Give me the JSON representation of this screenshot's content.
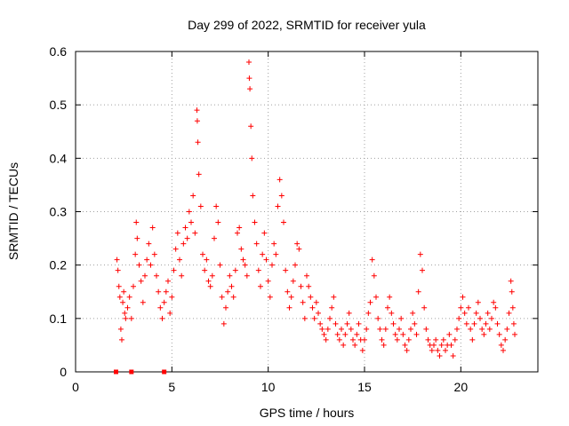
{
  "chart_data": {
    "type": "scatter",
    "title": "Day 299 of 2022, SRMTID for receiver yula",
    "xlabel": "GPS time / hours",
    "ylabel": "SRMTID / TECUs",
    "xlim": [
      0,
      24
    ],
    "ylim": [
      0,
      0.6
    ],
    "xticks": [
      0,
      5,
      10,
      15,
      20
    ],
    "yticks": [
      0,
      0.1,
      0.2,
      0.3,
      0.4,
      0.5,
      0.6
    ],
    "xtick_labels": [
      "0",
      "5",
      "10",
      "15",
      "20"
    ],
    "ytick_labels": [
      "0",
      "0.1",
      "0.2",
      "0.3",
      "0.4",
      "0.5",
      "0.6"
    ],
    "grid": true,
    "marker": "+",
    "series_color": "#ff0000",
    "zero_markers_x": [
      2.1,
      2.9,
      4.6
    ],
    "series": [
      {
        "name": "SRMTID",
        "points": [
          [
            2.15,
            0.21
          ],
          [
            2.2,
            0.19
          ],
          [
            2.25,
            0.16
          ],
          [
            2.3,
            0.14
          ],
          [
            2.35,
            0.08
          ],
          [
            2.4,
            0.06
          ],
          [
            2.45,
            0.13
          ],
          [
            2.5,
            0.15
          ],
          [
            2.55,
            0.11
          ],
          [
            2.6,
            0.1
          ],
          [
            2.7,
            0.12
          ],
          [
            2.8,
            0.14
          ],
          [
            2.9,
            0.1
          ],
          [
            3.0,
            0.16
          ],
          [
            3.1,
            0.22
          ],
          [
            3.15,
            0.28
          ],
          [
            3.2,
            0.25
          ],
          [
            3.3,
            0.2
          ],
          [
            3.4,
            0.17
          ],
          [
            3.5,
            0.13
          ],
          [
            3.6,
            0.18
          ],
          [
            3.7,
            0.21
          ],
          [
            3.8,
            0.24
          ],
          [
            3.9,
            0.2
          ],
          [
            4.0,
            0.27
          ],
          [
            4.1,
            0.22
          ],
          [
            4.2,
            0.18
          ],
          [
            4.3,
            0.15
          ],
          [
            4.4,
            0.12
          ],
          [
            4.5,
            0.1
          ],
          [
            4.6,
            0.13
          ],
          [
            4.7,
            0.15
          ],
          [
            4.8,
            0.17
          ],
          [
            4.9,
            0.11
          ],
          [
            5.0,
            0.14
          ],
          [
            5.1,
            0.19
          ],
          [
            5.2,
            0.23
          ],
          [
            5.3,
            0.26
          ],
          [
            5.4,
            0.21
          ],
          [
            5.5,
            0.18
          ],
          [
            5.6,
            0.24
          ],
          [
            5.7,
            0.27
          ],
          [
            5.8,
            0.25
          ],
          [
            5.9,
            0.3
          ],
          [
            6.0,
            0.28
          ],
          [
            6.1,
            0.33
          ],
          [
            6.2,
            0.26
          ],
          [
            6.3,
            0.49
          ],
          [
            6.32,
            0.47
          ],
          [
            6.35,
            0.43
          ],
          [
            6.4,
            0.37
          ],
          [
            6.5,
            0.31
          ],
          [
            6.6,
            0.22
          ],
          [
            6.7,
            0.19
          ],
          [
            6.8,
            0.21
          ],
          [
            6.9,
            0.17
          ],
          [
            7.0,
            0.16
          ],
          [
            7.1,
            0.18
          ],
          [
            7.2,
            0.25
          ],
          [
            7.3,
            0.31
          ],
          [
            7.4,
            0.28
          ],
          [
            7.5,
            0.2
          ],
          [
            7.6,
            0.14
          ],
          [
            7.7,
            0.09
          ],
          [
            7.8,
            0.12
          ],
          [
            7.9,
            0.15
          ],
          [
            8.0,
            0.18
          ],
          [
            8.1,
            0.16
          ],
          [
            8.2,
            0.14
          ],
          [
            8.3,
            0.19
          ],
          [
            8.4,
            0.26
          ],
          [
            8.5,
            0.27
          ],
          [
            8.6,
            0.23
          ],
          [
            8.7,
            0.21
          ],
          [
            8.8,
            0.2
          ],
          [
            8.9,
            0.18
          ],
          [
            9.0,
            0.58
          ],
          [
            9.02,
            0.55
          ],
          [
            9.05,
            0.53
          ],
          [
            9.1,
            0.46
          ],
          [
            9.15,
            0.4
          ],
          [
            9.2,
            0.33
          ],
          [
            9.3,
            0.28
          ],
          [
            9.4,
            0.24
          ],
          [
            9.5,
            0.19
          ],
          [
            9.6,
            0.16
          ],
          [
            9.7,
            0.22
          ],
          [
            9.8,
            0.26
          ],
          [
            9.9,
            0.21
          ],
          [
            10.0,
            0.17
          ],
          [
            10.1,
            0.14
          ],
          [
            10.2,
            0.2
          ],
          [
            10.3,
            0.24
          ],
          [
            10.4,
            0.22
          ],
          [
            10.5,
            0.31
          ],
          [
            10.6,
            0.36
          ],
          [
            10.7,
            0.33
          ],
          [
            10.8,
            0.28
          ],
          [
            10.9,
            0.19
          ],
          [
            11.0,
            0.15
          ],
          [
            11.1,
            0.12
          ],
          [
            11.2,
            0.14
          ],
          [
            11.3,
            0.17
          ],
          [
            11.4,
            0.2
          ],
          [
            11.5,
            0.24
          ],
          [
            11.6,
            0.23
          ],
          [
            11.7,
            0.16
          ],
          [
            11.8,
            0.13
          ],
          [
            11.9,
            0.1
          ],
          [
            12.0,
            0.18
          ],
          [
            12.1,
            0.16
          ],
          [
            12.2,
            0.14
          ],
          [
            12.3,
            0.12
          ],
          [
            12.4,
            0.1
          ],
          [
            12.5,
            0.13
          ],
          [
            12.6,
            0.11
          ],
          [
            12.7,
            0.09
          ],
          [
            12.8,
            0.08
          ],
          [
            12.9,
            0.07
          ],
          [
            13.0,
            0.06
          ],
          [
            13.1,
            0.08
          ],
          [
            13.2,
            0.1
          ],
          [
            13.3,
            0.12
          ],
          [
            13.4,
            0.14
          ],
          [
            13.5,
            0.09
          ],
          [
            13.6,
            0.07
          ],
          [
            13.7,
            0.06
          ],
          [
            13.8,
            0.08
          ],
          [
            13.9,
            0.05
          ],
          [
            14.0,
            0.07
          ],
          [
            14.1,
            0.09
          ],
          [
            14.2,
            0.11
          ],
          [
            14.3,
            0.08
          ],
          [
            14.4,
            0.06
          ],
          [
            14.5,
            0.05
          ],
          [
            14.6,
            0.07
          ],
          [
            14.7,
            0.09
          ],
          [
            14.8,
            0.06
          ],
          [
            14.9,
            0.04
          ],
          [
            15.0,
            0.06
          ],
          [
            15.1,
            0.08
          ],
          [
            15.2,
            0.11
          ],
          [
            15.3,
            0.13
          ],
          [
            15.4,
            0.21
          ],
          [
            15.5,
            0.18
          ],
          [
            15.6,
            0.14
          ],
          [
            15.7,
            0.1
          ],
          [
            15.8,
            0.08
          ],
          [
            15.9,
            0.06
          ],
          [
            16.0,
            0.05
          ],
          [
            16.1,
            0.08
          ],
          [
            16.2,
            0.12
          ],
          [
            16.3,
            0.14
          ],
          [
            16.4,
            0.11
          ],
          [
            16.5,
            0.09
          ],
          [
            16.6,
            0.07
          ],
          [
            16.7,
            0.06
          ],
          [
            16.8,
            0.08
          ],
          [
            16.9,
            0.1
          ],
          [
            17.0,
            0.07
          ],
          [
            17.1,
            0.05
          ],
          [
            17.2,
            0.04
          ],
          [
            17.3,
            0.06
          ],
          [
            17.4,
            0.08
          ],
          [
            17.5,
            0.11
          ],
          [
            17.6,
            0.09
          ],
          [
            17.7,
            0.07
          ],
          [
            17.8,
            0.15
          ],
          [
            17.9,
            0.22
          ],
          [
            18.0,
            0.19
          ],
          [
            18.1,
            0.12
          ],
          [
            18.2,
            0.08
          ],
          [
            18.3,
            0.06
          ],
          [
            18.4,
            0.05
          ],
          [
            18.5,
            0.04
          ],
          [
            18.6,
            0.05
          ],
          [
            18.7,
            0.06
          ],
          [
            18.8,
            0.04
          ],
          [
            18.9,
            0.03
          ],
          [
            19.0,
            0.05
          ],
          [
            19.1,
            0.06
          ],
          [
            19.2,
            0.04
          ],
          [
            19.3,
            0.05
          ],
          [
            19.4,
            0.07
          ],
          [
            19.5,
            0.05
          ],
          [
            19.6,
            0.03
          ],
          [
            19.7,
            0.06
          ],
          [
            19.8,
            0.08
          ],
          [
            19.9,
            0.1
          ],
          [
            20.0,
            0.12
          ],
          [
            20.1,
            0.14
          ],
          [
            20.2,
            0.11
          ],
          [
            20.3,
            0.09
          ],
          [
            20.4,
            0.12
          ],
          [
            20.5,
            0.08
          ],
          [
            20.6,
            0.06
          ],
          [
            20.7,
            0.09
          ],
          [
            20.8,
            0.11
          ],
          [
            20.9,
            0.13
          ],
          [
            21.0,
            0.1
          ],
          [
            21.1,
            0.08
          ],
          [
            21.2,
            0.07
          ],
          [
            21.3,
            0.09
          ],
          [
            21.4,
            0.11
          ],
          [
            21.5,
            0.08
          ],
          [
            21.6,
            0.1
          ],
          [
            21.7,
            0.13
          ],
          [
            21.8,
            0.12
          ],
          [
            21.9,
            0.09
          ],
          [
            22.0,
            0.07
          ],
          [
            22.1,
            0.05
          ],
          [
            22.2,
            0.04
          ],
          [
            22.3,
            0.06
          ],
          [
            22.4,
            0.08
          ],
          [
            22.5,
            0.11
          ],
          [
            22.6,
            0.17
          ],
          [
            22.65,
            0.15
          ],
          [
            22.7,
            0.12
          ],
          [
            22.75,
            0.09
          ],
          [
            22.8,
            0.07
          ]
        ]
      }
    ]
  }
}
